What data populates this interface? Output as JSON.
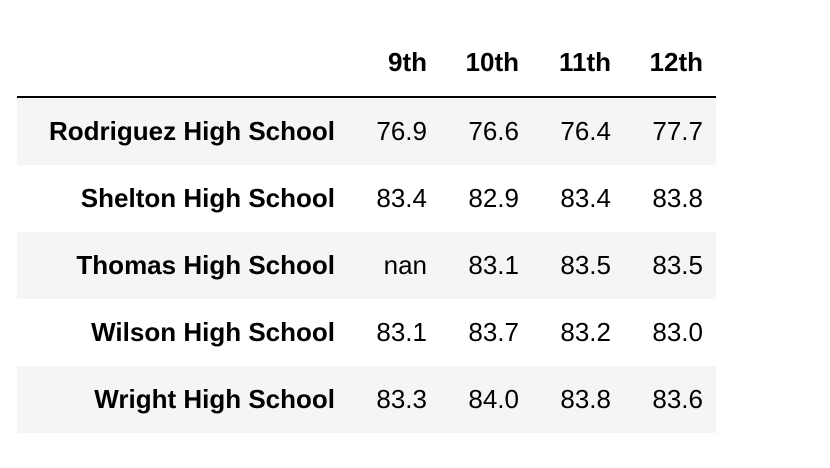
{
  "table": {
    "columns": [
      "9th",
      "10th",
      "11th",
      "12th"
    ],
    "rows": [
      {
        "name": "Rodriguez High School",
        "values": [
          "76.9",
          "76.6",
          "76.4",
          "77.7"
        ]
      },
      {
        "name": "Shelton High School",
        "values": [
          "83.4",
          "82.9",
          "83.4",
          "83.8"
        ]
      },
      {
        "name": "Thomas High School",
        "values": [
          "nan",
          "83.1",
          "83.5",
          "83.5"
        ]
      },
      {
        "name": "Wilson High School",
        "values": [
          "83.1",
          "83.7",
          "83.2",
          "83.0"
        ]
      },
      {
        "name": "Wright High School",
        "values": [
          "83.3",
          "84.0",
          "83.8",
          "83.6"
        ]
      }
    ]
  }
}
